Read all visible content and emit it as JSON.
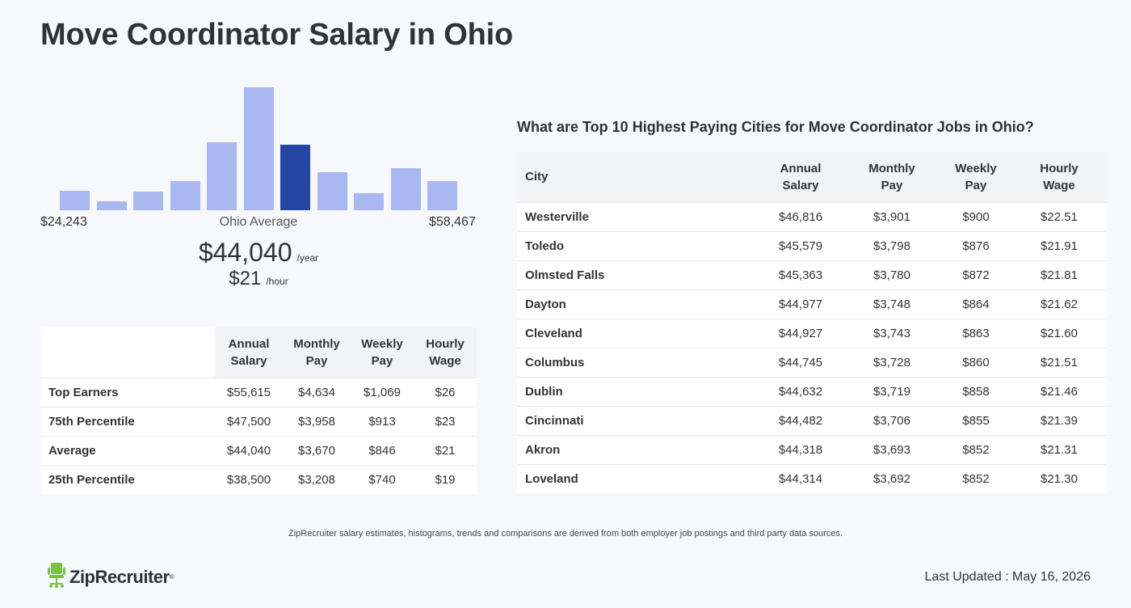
{
  "title": "Move Coordinator Salary in Ohio",
  "histogram": {
    "min_label": "$24,243",
    "max_label": "$58,467",
    "mid_label": "Ohio Average",
    "colors": {
      "bar": "#a9b8f0",
      "highlight": "#2646a3"
    },
    "bars": [
      {
        "level": 0.16,
        "highlight": false
      },
      {
        "level": 0.07,
        "highlight": false
      },
      {
        "level": 0.15,
        "highlight": false
      },
      {
        "level": 0.24,
        "highlight": false
      },
      {
        "level": 0.55,
        "highlight": false
      },
      {
        "level": 1.0,
        "highlight": false
      },
      {
        "level": 0.53,
        "highlight": true
      },
      {
        "level": 0.31,
        "highlight": false
      },
      {
        "level": 0.14,
        "highlight": false
      },
      {
        "level": 0.34,
        "highlight": false
      },
      {
        "level": 0.24,
        "highlight": false
      }
    ]
  },
  "average": {
    "yearly": "$44,040",
    "yearly_unit": "/year",
    "hourly": "$21",
    "hourly_unit": "/hour"
  },
  "percentile_table": {
    "headers": [
      [
        "Annual",
        "Salary"
      ],
      [
        "Monthly",
        "Pay"
      ],
      [
        "Weekly",
        "Pay"
      ],
      [
        "Hourly",
        "Wage"
      ]
    ],
    "rows": [
      {
        "label": "Top Earners",
        "values": [
          "$55,615",
          "$4,634",
          "$1,069",
          "$26"
        ]
      },
      {
        "label": "75th Percentile",
        "values": [
          "$47,500",
          "$3,958",
          "$913",
          "$23"
        ]
      },
      {
        "label": "Average",
        "values": [
          "$44,040",
          "$3,670",
          "$846",
          "$21"
        ]
      },
      {
        "label": "25th Percentile",
        "values": [
          "$38,500",
          "$3,208",
          "$740",
          "$19"
        ]
      }
    ]
  },
  "cities_section": {
    "title": "What are Top 10 Highest Paying Cities for Move Coordinator Jobs in Ohio?",
    "city_header": "City",
    "headers": [
      [
        "Annual",
        "Salary"
      ],
      [
        "Monthly",
        "Pay"
      ],
      [
        "Weekly",
        "Pay"
      ],
      [
        "Hourly",
        "Wage"
      ]
    ],
    "rows": [
      {
        "city": "Westerville",
        "values": [
          "$46,816",
          "$3,901",
          "$900",
          "$22.51"
        ]
      },
      {
        "city": "Toledo",
        "values": [
          "$45,579",
          "$3,798",
          "$876",
          "$21.91"
        ]
      },
      {
        "city": "Olmsted Falls",
        "values": [
          "$45,363",
          "$3,780",
          "$872",
          "$21.81"
        ]
      },
      {
        "city": "Dayton",
        "values": [
          "$44,977",
          "$3,748",
          "$864",
          "$21.62"
        ]
      },
      {
        "city": "Cleveland",
        "values": [
          "$44,927",
          "$3,743",
          "$863",
          "$21.60"
        ]
      },
      {
        "city": "Columbus",
        "values": [
          "$44,745",
          "$3,728",
          "$860",
          "$21.51"
        ]
      },
      {
        "city": "Dublin",
        "values": [
          "$44,632",
          "$3,719",
          "$858",
          "$21.46"
        ]
      },
      {
        "city": "Cincinnati",
        "values": [
          "$44,482",
          "$3,706",
          "$855",
          "$21.39"
        ]
      },
      {
        "city": "Akron",
        "values": [
          "$44,318",
          "$3,693",
          "$852",
          "$21.31"
        ]
      },
      {
        "city": "Loveland",
        "values": [
          "$44,314",
          "$3,692",
          "$852",
          "$21.30"
        ]
      }
    ]
  },
  "disclaimer": "ZipRecruiter salary estimates, histograms, trends and comparisons are derived from both employer job postings and third party data sources.",
  "logo": {
    "text": "ZipRecruiter",
    "tm": "®",
    "icon": "chair-icon",
    "color": "#7bc142"
  },
  "last_updated": "Last Updated : May 16, 2026"
}
